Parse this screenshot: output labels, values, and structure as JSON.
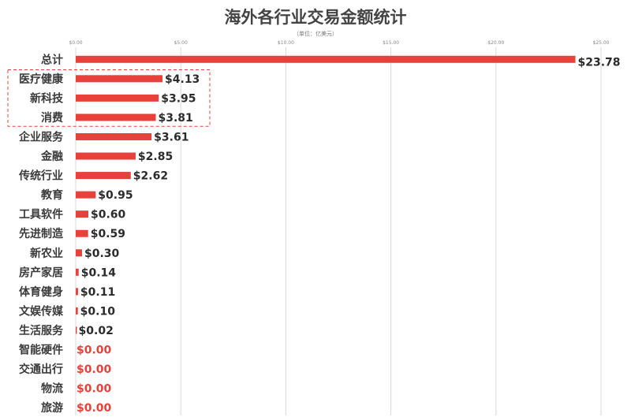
{
  "chart_data": {
    "type": "bar",
    "orientation": "horizontal",
    "title": "海外各行业交易金额统计",
    "subtitle": "（单位：亿美元）",
    "categories": [
      "总计",
      "医疗健康",
      "新科技",
      "消费",
      "企业服务",
      "金融",
      "传统行业",
      "教育",
      "工具软件",
      "先进制造",
      "新农业",
      "房产家居",
      "体育健身",
      "文娱传媒",
      "生活服务",
      "智能硬件",
      "交通出行",
      "物流",
      "旅游"
    ],
    "values": [
      23.78,
      4.13,
      3.95,
      3.81,
      3.61,
      2.85,
      2.62,
      0.95,
      0.6,
      0.59,
      0.3,
      0.14,
      0.11,
      0.1,
      0.02,
      0.0,
      0.0,
      0.0,
      0.0
    ],
    "value_labels": [
      "$23.78",
      "$4.13",
      "$3.95",
      "$3.81",
      "$3.61",
      "$2.85",
      "$2.62",
      "$0.95",
      "$0.60",
      "$0.59",
      "$0.30",
      "$0.14",
      "$0.11",
      "$0.10",
      "$0.02",
      "$0.00",
      "$0.00",
      "$0.00",
      "$0.00"
    ],
    "x_ticks": [
      0,
      5,
      10,
      15,
      20,
      25
    ],
    "x_tick_labels": [
      "$0.00",
      "$5.00",
      "$10.00",
      "$15.00",
      "$20.00",
      "$25.00"
    ],
    "xlim": [
      0,
      25
    ],
    "highlighted_categories": [
      "医疗健康",
      "新科技",
      "消费"
    ],
    "grid": "vertical",
    "colors": {
      "bar": "#e8413b",
      "value_label": "#2b2b2b",
      "zero_value_label": "#e8413b",
      "highlight_box": "#e8413b",
      "grid": "#d9d9d9"
    }
  }
}
